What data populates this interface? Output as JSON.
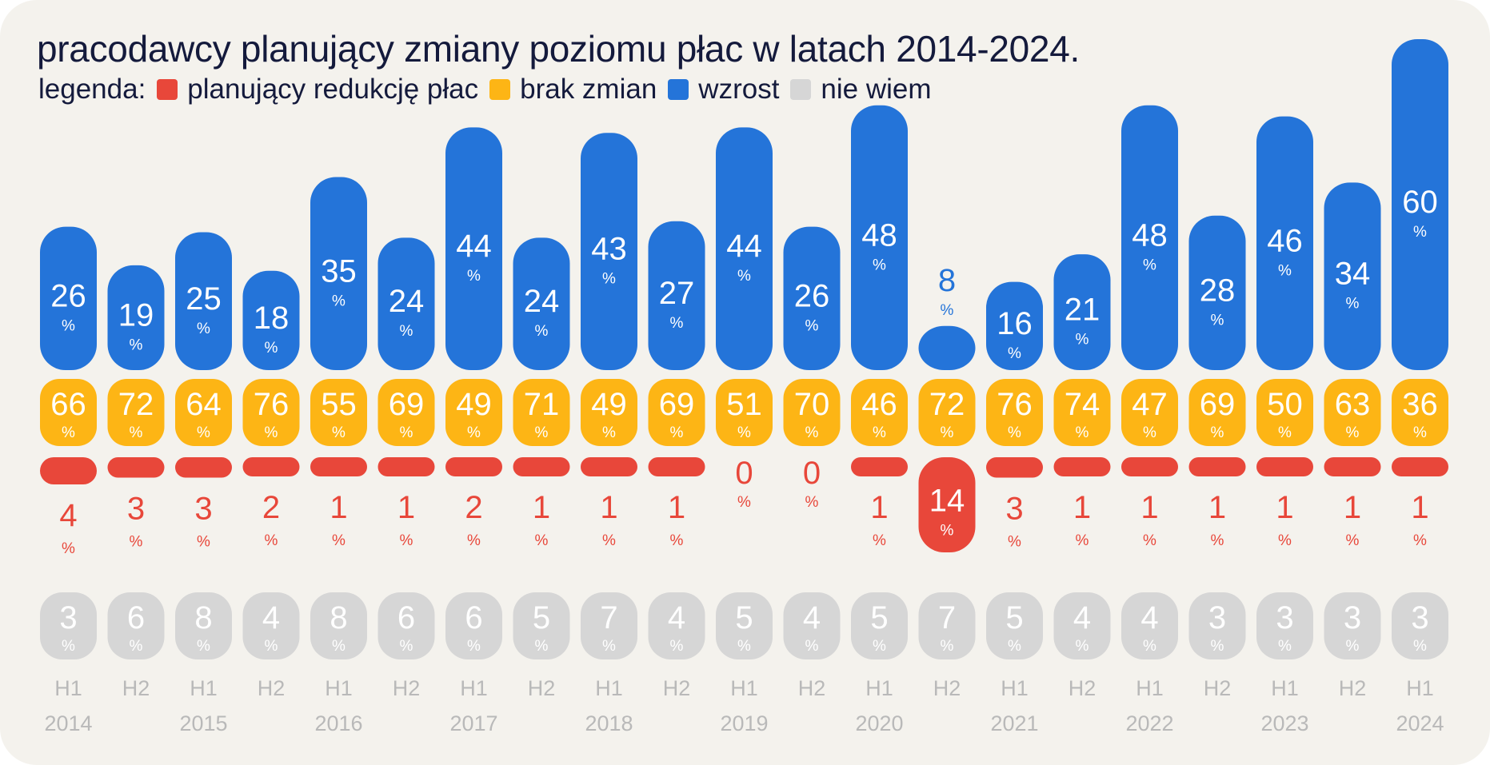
{
  "title": "pracodawcy planujący zmiany poziomu płac w latach 2014-2024.",
  "legend": {
    "prefix": "legenda:",
    "items": [
      {
        "label": "planujący redukcję płac",
        "color": "#e8473a"
      },
      {
        "label": "brak zmian",
        "color": "#fdb515"
      },
      {
        "label": "wzrost",
        "color": "#2474d9"
      },
      {
        "label": "nie wiem",
        "color": "#d6d6d6"
      }
    ]
  },
  "chart_data": {
    "type": "bar",
    "title": "pracodawcy planujący zmiany poziomu płac w latach 2014-2024.",
    "unit": "%",
    "categories": [
      "H1 2014",
      "H2 2014",
      "H1 2015",
      "H2 2015",
      "H1 2016",
      "H2 2016",
      "H1 2017",
      "H2 2017",
      "H1 2018",
      "H2 2018",
      "H1 2019",
      "H2 2019",
      "H1 2020",
      "H2 2020",
      "H1 2021",
      "H2 2021",
      "H1 2022",
      "H2 2022",
      "H1 2023",
      "H2 2023",
      "H1 2024"
    ],
    "periods": [
      "H1",
      "H2",
      "H1",
      "H2",
      "H1",
      "H2",
      "H1",
      "H2",
      "H1",
      "H2",
      "H1",
      "H2",
      "H1",
      "H2",
      "H1",
      "H2",
      "H1",
      "H2",
      "H1",
      "H2",
      "H1"
    ],
    "years": [
      "2014",
      "2015",
      "2016",
      "2017",
      "2018",
      "2019",
      "2020",
      "2021",
      "2022",
      "2023",
      "2024"
    ],
    "series": [
      {
        "name": "wzrost",
        "color": "#2474d9",
        "values": [
          26,
          19,
          25,
          18,
          35,
          24,
          44,
          24,
          43,
          27,
          44,
          26,
          48,
          8,
          16,
          21,
          48,
          28,
          46,
          34,
          60
        ]
      },
      {
        "name": "brak zmian",
        "color": "#fdb515",
        "values": [
          66,
          72,
          64,
          76,
          55,
          69,
          49,
          71,
          49,
          69,
          51,
          70,
          46,
          72,
          76,
          74,
          47,
          69,
          50,
          63,
          36
        ]
      },
      {
        "name": "planujący redukcję płac",
        "color": "#e8473a",
        "values": [
          4,
          3,
          3,
          2,
          1,
          1,
          2,
          1,
          1,
          1,
          0,
          0,
          1,
          14,
          3,
          1,
          1,
          1,
          1,
          1,
          1
        ]
      },
      {
        "name": "nie wiem",
        "color": "#d6d6d6",
        "values": [
          3,
          6,
          8,
          4,
          8,
          6,
          6,
          5,
          7,
          4,
          5,
          4,
          5,
          7,
          5,
          4,
          4,
          3,
          3,
          3,
          3
        ]
      }
    ]
  }
}
